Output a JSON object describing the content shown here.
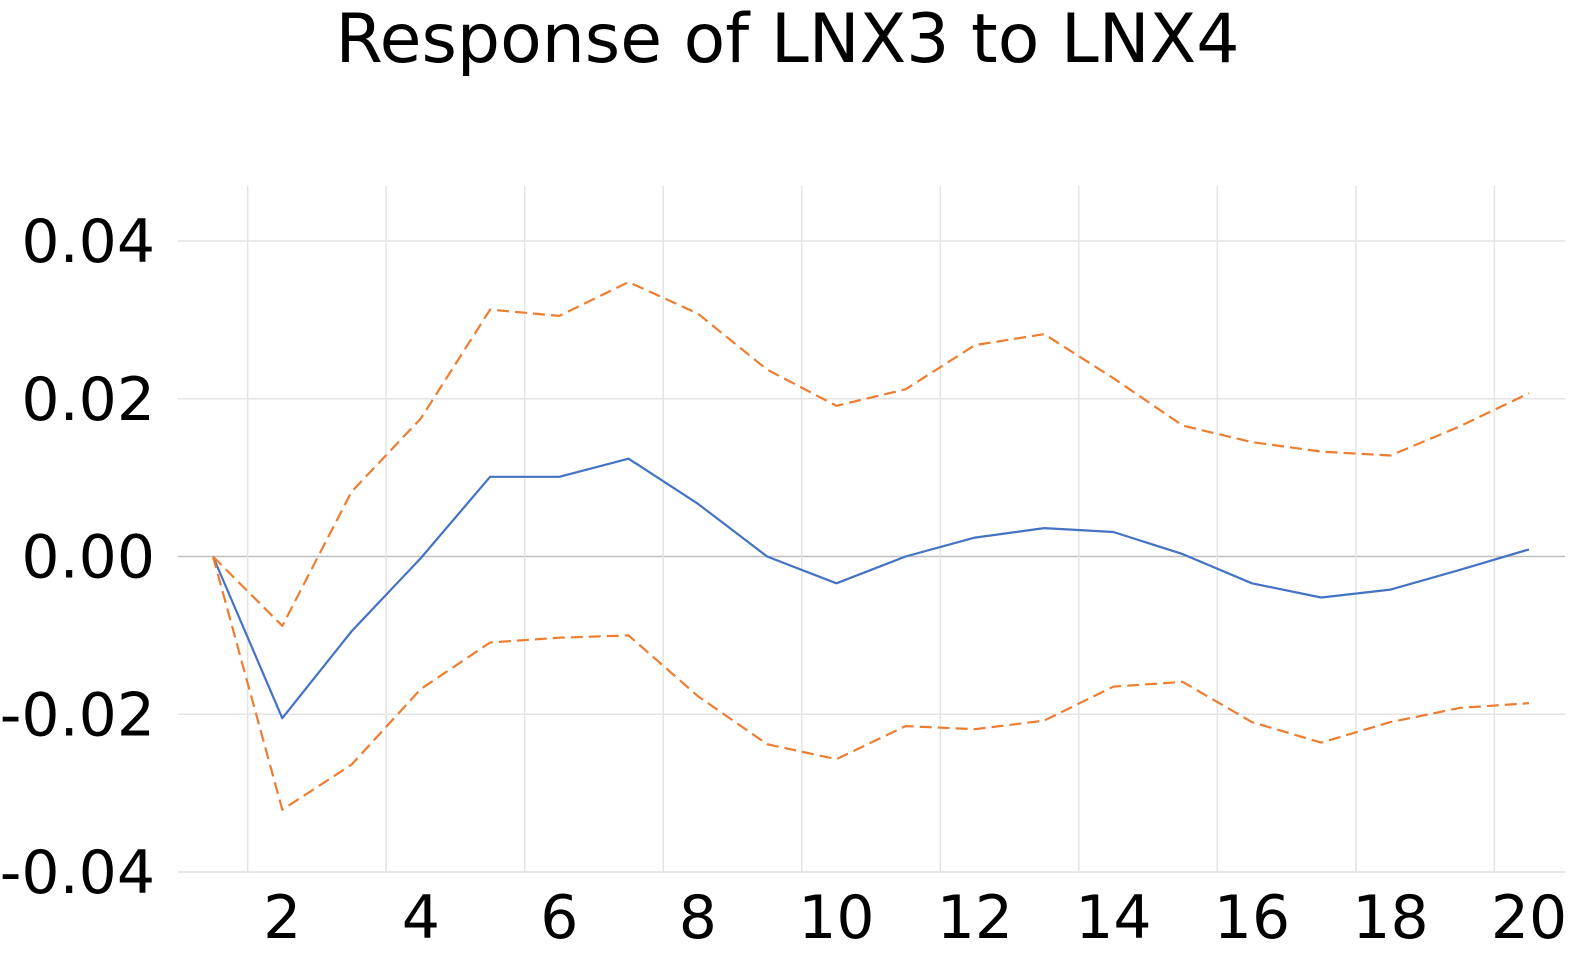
{
  "chart_data": {
    "type": "line",
    "title": "Response of LNX3 to LNX4",
    "xlabel": "",
    "ylabel": "",
    "x": [
      1,
      2,
      3,
      4,
      5,
      6,
      7,
      8,
      9,
      10,
      11,
      12,
      13,
      14,
      15,
      16,
      17,
      18,
      19,
      20
    ],
    "xlim": [
      0.5,
      20.5
    ],
    "ylim": [
      -0.04,
      0.04
    ],
    "x_tick_labels": [
      "2",
      "4",
      "6",
      "8",
      "10",
      "12",
      "14",
      "16",
      "18",
      "20"
    ],
    "x_ticks": [
      2,
      4,
      6,
      8,
      10,
      12,
      14,
      16,
      18,
      20
    ],
    "y_tick_labels": [
      "0.04",
      "0.02",
      "0.00",
      "-0.02",
      "-0.04"
    ],
    "y_ticks": [
      0.04,
      0.02,
      0.0,
      -0.02,
      -0.04
    ],
    "grid": true,
    "legend": "none",
    "series": [
      {
        "style": "solid",
        "color": "#4472c4",
        "values": [
          0.0,
          -0.0205,
          -0.0095,
          -0.0002,
          0.0101,
          0.0101,
          0.0124,
          0.0067,
          0.0,
          -0.0034,
          0.0,
          0.0024,
          0.0036,
          0.0031,
          0.0003,
          -0.0034,
          -0.0052,
          -0.0042,
          -0.0017,
          0.0009
        ]
      },
      {
        "style": "dashed",
        "color": "#ed7d31",
        "values": [
          0.0,
          -0.0088,
          0.0082,
          0.0175,
          0.0313,
          0.0305,
          0.0348,
          0.0308,
          0.0237,
          0.0191,
          0.0212,
          0.0268,
          0.0282,
          0.0226,
          0.0166,
          0.0145,
          0.0133,
          0.0128,
          0.0165,
          0.0207
        ]
      },
      {
        "style": "dashed",
        "color": "#ed7d31",
        "values": [
          0.0,
          -0.0321,
          -0.0264,
          -0.0168,
          -0.0109,
          -0.0103,
          -0.01,
          -0.0177,
          -0.0238,
          -0.0257,
          -0.0215,
          -0.0219,
          -0.0208,
          -0.0165,
          -0.0159,
          -0.021,
          -0.0236,
          -0.021,
          -0.0192,
          -0.0186
        ]
      }
    ],
    "gridline_color": "#e4e4e4",
    "zero_line_color": "#bfbfbf"
  }
}
